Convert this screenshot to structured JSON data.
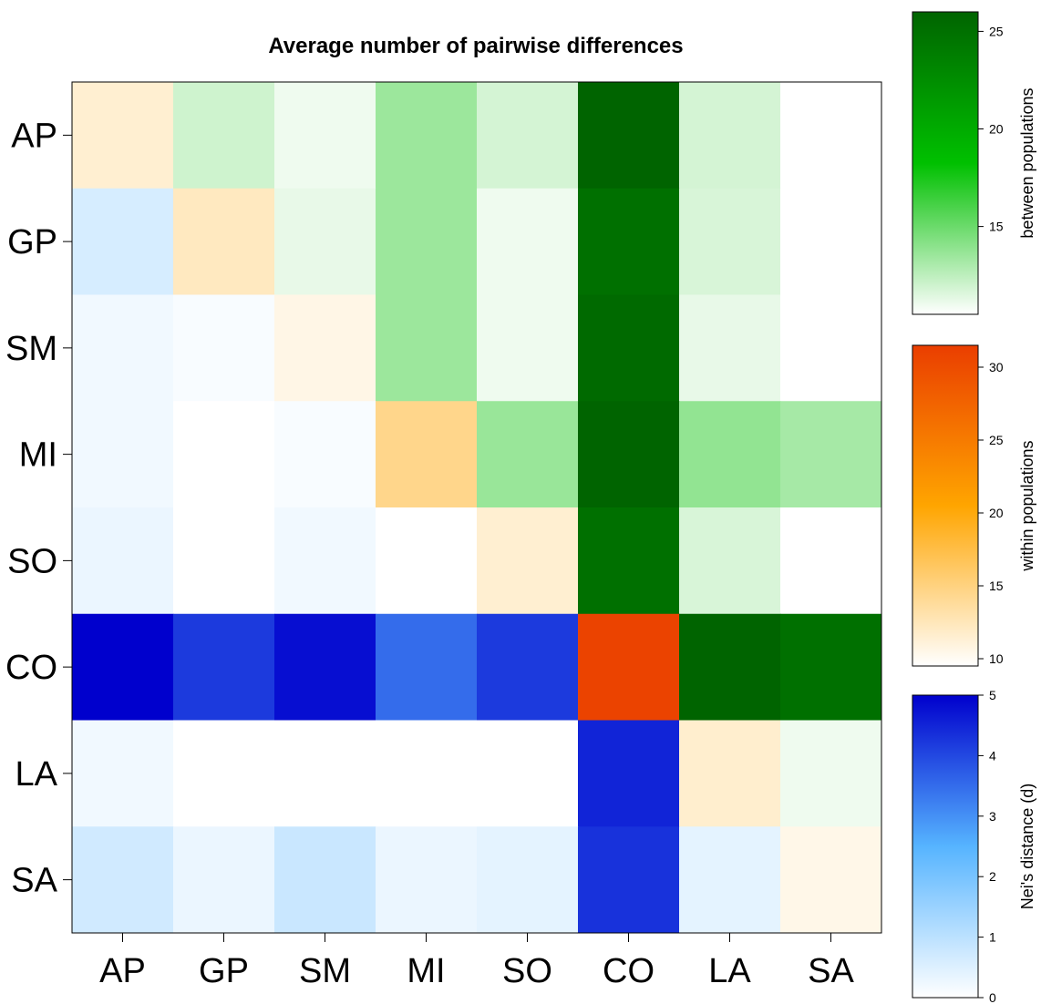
{
  "chart_data": {
    "type": "heatmap",
    "title": "Average number of pairwise differences",
    "rows": [
      "AP",
      "GP",
      "SM",
      "MI",
      "SO",
      "CO",
      "LA",
      "SA"
    ],
    "cols": [
      "AP",
      "GP",
      "SM",
      "MI",
      "SO",
      "CO",
      "LA",
      "SA"
    ],
    "cells_note_upper": "between populations",
    "matrix": [
      [
        11.5,
        12.0,
        11.0,
        13.5,
        11.8,
        26.0,
        11.8,
        10.5
      ],
      [
        0.6,
        12.2,
        11.2,
        13.5,
        11.0,
        25.0,
        11.7,
        10.5
      ],
      [
        0.2,
        0.1,
        10.6,
        13.5,
        11.0,
        25.5,
        11.2,
        10.5
      ],
      [
        0.2,
        0.0,
        0.1,
        14.5,
        13.6,
        26.0,
        13.8,
        13.2
      ],
      [
        0.3,
        0.0,
        0.2,
        0.0,
        11.5,
        25.0,
        11.7,
        10.5
      ],
      [
        5.0,
        4.2,
        4.8,
        3.5,
        4.2,
        31.0,
        26.0,
        25.0
      ],
      [
        0.2,
        0.0,
        0.0,
        0.0,
        0.0,
        4.5,
        11.6,
        11.0
      ],
      [
        0.7,
        0.3,
        0.8,
        0.3,
        0.4,
        4.3,
        0.4,
        10.5
      ]
    ],
    "legends": [
      {
        "label": "between populations",
        "range": [
          10.5,
          26
        ],
        "ticks": [
          15,
          20,
          25
        ],
        "colors": [
          "#ffffff",
          "#00c000",
          "#006400"
        ]
      },
      {
        "label": "within populations",
        "range": [
          9.5,
          31.5
        ],
        "ticks": [
          10,
          15,
          20,
          25,
          30
        ],
        "colors": [
          "#ffffff",
          "#ffa500",
          "#ea3e00"
        ]
      },
      {
        "label": "Nei's distance (d)",
        "range": [
          0,
          5
        ],
        "ticks": [
          0,
          1,
          2,
          3,
          4,
          5
        ],
        "colors": [
          "#ffffff",
          "#56b4ff",
          "#0000cd"
        ]
      }
    ]
  }
}
